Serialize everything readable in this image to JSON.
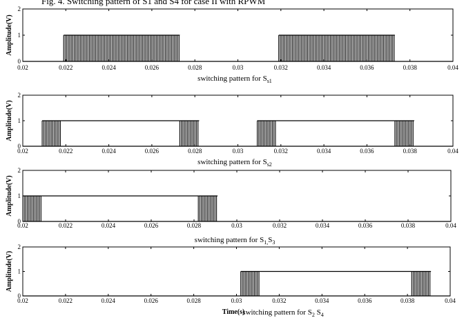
{
  "page_header": "Fig. 4. Switching pattern of S1 and S4 for case II with RPWM",
  "chart_data": [
    {
      "type": "line",
      "title": "switching pattern for S",
      "title_sub": "s1",
      "ylabel": "Amplitude(V)",
      "xlabel": "",
      "xlim": [
        0.02,
        0.04
      ],
      "ylim": [
        0,
        2
      ],
      "xticks": [
        0.02,
        0.022,
        0.024,
        0.026,
        0.028,
        0.03,
        0.032,
        0.034,
        0.036,
        0.038,
        0.04
      ],
      "xtick_labels": [
        "0.02",
        "0.022",
        "0.024",
        "0.026",
        "0.028",
        "0.03",
        "0.032",
        "0.034",
        "0.036",
        "0.038",
        "0.04"
      ],
      "yticks": [
        0,
        1,
        2
      ],
      "ytick_labels": [
        "0",
        "1",
        "2"
      ],
      "segments": [
        {
          "mode": "pulses",
          "start": 0.0219,
          "end": 0.0273
        },
        {
          "mode": "pulses",
          "start": 0.0319,
          "end": 0.0373
        }
      ]
    },
    {
      "type": "line",
      "title": "switching pattern for S",
      "title_sub": "s2",
      "ylabel": "Amplitude(V)",
      "xlabel": "",
      "xlim": [
        0.02,
        0.04
      ],
      "ylim": [
        0,
        2
      ],
      "xticks": [
        0.02,
        0.022,
        0.024,
        0.026,
        0.028,
        0.03,
        0.032,
        0.034,
        0.036,
        0.038,
        0.04
      ],
      "xtick_labels": [
        "0.02",
        "0.022",
        "0.024",
        "0.026",
        "0.028",
        "0.03",
        "0.032",
        "0.034",
        "0.036",
        "0.038",
        "0.04"
      ],
      "yticks": [
        0,
        1,
        2
      ],
      "ytick_labels": [
        "0",
        "1",
        "2"
      ],
      "segments": [
        {
          "mode": "pulses",
          "start": 0.0209,
          "end": 0.0218
        },
        {
          "mode": "high",
          "start": 0.0218,
          "end": 0.0273
        },
        {
          "mode": "pulses",
          "start": 0.0273,
          "end": 0.0282
        },
        {
          "mode": "pulses",
          "start": 0.0309,
          "end": 0.0318
        },
        {
          "mode": "high",
          "start": 0.0318,
          "end": 0.0373
        },
        {
          "mode": "pulses",
          "start": 0.0373,
          "end": 0.0382
        }
      ]
    },
    {
      "type": "line",
      "title": "switching pattern for S",
      "title_sub": "1,",
      "title_cont": "S",
      "title_sub2": "3",
      "ylabel": "Amplitude(V)",
      "xlabel": "",
      "xlim": [
        0.02,
        0.04
      ],
      "ylim": [
        0,
        2
      ],
      "xticks": [
        0.02,
        0.022,
        0.024,
        0.026,
        0.028,
        0.03,
        0.032,
        0.034,
        0.036,
        0.038,
        0.04
      ],
      "xtick_labels": [
        "0.02",
        "0.022",
        "0.024",
        "0.026",
        "0.028",
        "0.03",
        "0.032",
        "0.034",
        "0.036",
        "0.038",
        "0.04"
      ],
      "yticks": [
        0,
        1,
        2
      ],
      "ytick_labels": [
        "0",
        "1",
        "2"
      ],
      "segments": [
        {
          "mode": "pulses",
          "start": 0.02,
          "end": 0.0209
        },
        {
          "mode": "high",
          "start": 0.0209,
          "end": 0.0282
        },
        {
          "mode": "pulses",
          "start": 0.0282,
          "end": 0.0291
        }
      ]
    },
    {
      "type": "line",
      "title": "switching pattern for S",
      "title_sub": "2",
      "title_cont": " S",
      "title_sub2": "4",
      "ylabel": "Amplitude(V)",
      "xlabel": "Time(s)",
      "xlim": [
        0.02,
        0.04
      ],
      "ylim": [
        0,
        2
      ],
      "xticks": [
        0.02,
        0.022,
        0.024,
        0.026,
        0.028,
        0.03,
        0.032,
        0.034,
        0.036,
        0.038,
        0.04
      ],
      "xtick_labels": [
        "0.02",
        "0.022",
        "0.024",
        "0.026",
        "0.028",
        "0.03",
        "0.032",
        "0.034",
        "0.036",
        "0.038",
        "0.04"
      ],
      "yticks": [
        0,
        1,
        2
      ],
      "ytick_labels": [
        "0",
        "1",
        "2"
      ],
      "segments": [
        {
          "mode": "pulses",
          "start": 0.0302,
          "end": 0.0311
        },
        {
          "mode": "high",
          "start": 0.0311,
          "end": 0.0382
        },
        {
          "mode": "pulses",
          "start": 0.0382,
          "end": 0.0391
        }
      ]
    }
  ]
}
